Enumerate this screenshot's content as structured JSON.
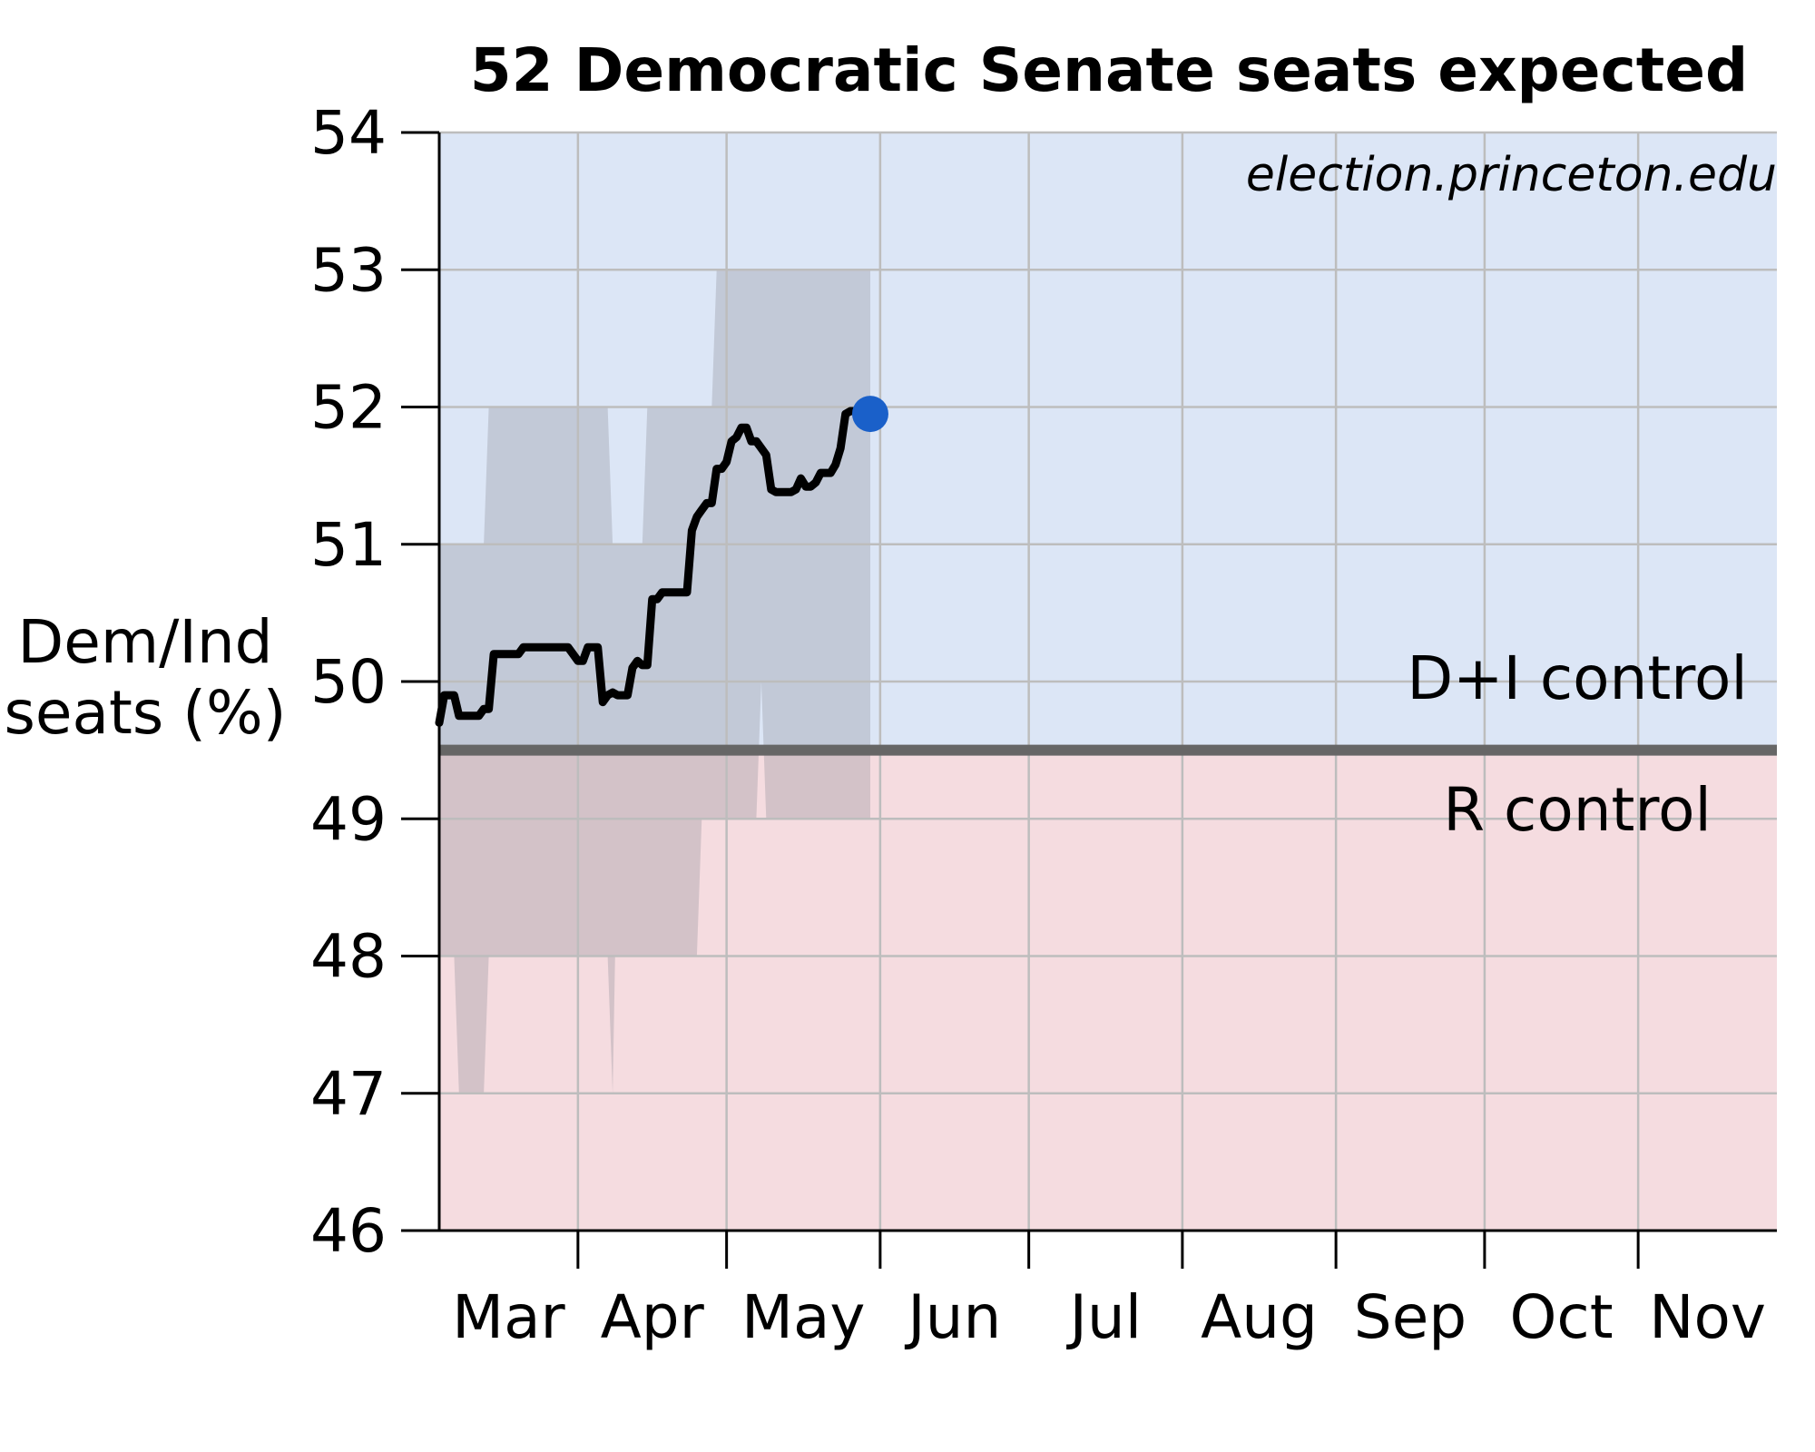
{
  "chart_data": {
    "type": "line",
    "title": "52 Democratic Senate seats expected",
    "ylabel": [
      "Dem/Ind",
      "seats (%)"
    ],
    "xlabel": "",
    "watermark": "election.princeton.edu",
    "ylim": [
      46,
      54
    ],
    "yticks": [
      46,
      47,
      48,
      49,
      50,
      51,
      52,
      53,
      54
    ],
    "x_range_days": [
      0,
      270
    ],
    "months": [
      {
        "label": "Mar",
        "start_day": 0,
        "end_day": 28
      },
      {
        "label": "Apr",
        "start_day": 28,
        "end_day": 58
      },
      {
        "label": "May",
        "start_day": 58,
        "end_day": 89
      },
      {
        "label": "Jun",
        "start_day": 89,
        "end_day": 119
      },
      {
        "label": "Jul",
        "start_day": 119,
        "end_day": 150
      },
      {
        "label": "Aug",
        "start_day": 150,
        "end_day": 181
      },
      {
        "label": "Sep",
        "start_day": 181,
        "end_day": 211
      },
      {
        "label": "Oct",
        "start_day": 211,
        "end_day": 242
      },
      {
        "label": "Nov",
        "start_day": 242,
        "end_day": 270
      }
    ],
    "control_threshold": 49.5,
    "regions": {
      "dem_label": "D+I control",
      "rep_label": "R control",
      "dem_color": "#dce6f6",
      "rep_color": "#f5dce0",
      "dem_text_color": "#1f5fc6",
      "rep_text_color": "#c8243c",
      "threshold_color": "#666666"
    },
    "band_color": "#8f8f98",
    "line_color": "#000000",
    "marker_color": "#1a60c9",
    "grid": true,
    "band_upper": [
      [
        0,
        51
      ],
      [
        9,
        51
      ],
      [
        10,
        52
      ],
      [
        34,
        52
      ],
      [
        35,
        51
      ],
      [
        41,
        51
      ],
      [
        42,
        52
      ],
      [
        55,
        52
      ],
      [
        56,
        53
      ],
      [
        87,
        53
      ]
    ],
    "band_lower": [
      [
        0,
        48
      ],
      [
        3,
        48
      ],
      [
        4,
        47
      ],
      [
        9,
        47
      ],
      [
        10,
        48
      ],
      [
        34,
        48
      ],
      [
        35,
        47
      ],
      [
        35.5,
        48
      ],
      [
        52,
        48
      ],
      [
        53,
        49
      ],
      [
        64,
        49
      ],
      [
        65,
        50
      ],
      [
        66,
        49
      ],
      [
        87,
        49
      ]
    ],
    "series": [
      {
        "name": "",
        "x": [
          0,
          1,
          3,
          4,
          5,
          7,
          8,
          9,
          10,
          11,
          12,
          13,
          14,
          15,
          16,
          17,
          18,
          19,
          20,
          21,
          22,
          23,
          25,
          26,
          27,
          28,
          29,
          30,
          31,
          32,
          33,
          34,
          35,
          36,
          37,
          38,
          39,
          40,
          41,
          42,
          43,
          44,
          45,
          46,
          47,
          48,
          49,
          50,
          51,
          52,
          53,
          54,
          55,
          56,
          57,
          58,
          59,
          60,
          61,
          62,
          63,
          64,
          65,
          66,
          67,
          68,
          69,
          70,
          71,
          72,
          73,
          74,
          75,
          76,
          77,
          78,
          79,
          80,
          81,
          82,
          83,
          84,
          85,
          86,
          87
        ],
        "y": [
          49.7,
          49.9,
          49.9,
          49.75,
          49.75,
          49.75,
          49.75,
          49.8,
          49.8,
          50.2,
          50.2,
          50.2,
          50.2,
          50.2,
          50.2,
          50.25,
          50.25,
          50.25,
          50.25,
          50.25,
          50.25,
          50.25,
          50.25,
          50.25,
          50.2,
          50.15,
          50.15,
          50.25,
          50.25,
          50.25,
          49.85,
          49.9,
          49.92,
          49.9,
          49.9,
          49.9,
          50.1,
          50.15,
          50.12,
          50.12,
          50.6,
          50.6,
          50.65,
          50.65,
          50.65,
          50.65,
          50.65,
          50.65,
          51.1,
          51.2,
          51.25,
          51.3,
          51.3,
          51.55,
          51.55,
          51.6,
          51.75,
          51.78,
          51.85,
          51.85,
          51.75,
          51.75,
          51.7,
          51.65,
          51.4,
          51.38,
          51.38,
          51.38,
          51.38,
          51.4,
          51.48,
          51.42,
          51.42,
          51.45,
          51.52,
          51.52,
          51.52,
          51.58,
          51.7,
          51.95,
          51.97,
          51.97,
          51.96,
          51.95,
          51.95
        ]
      }
    ],
    "current_point": {
      "x": 87,
      "y": 51.95
    }
  }
}
